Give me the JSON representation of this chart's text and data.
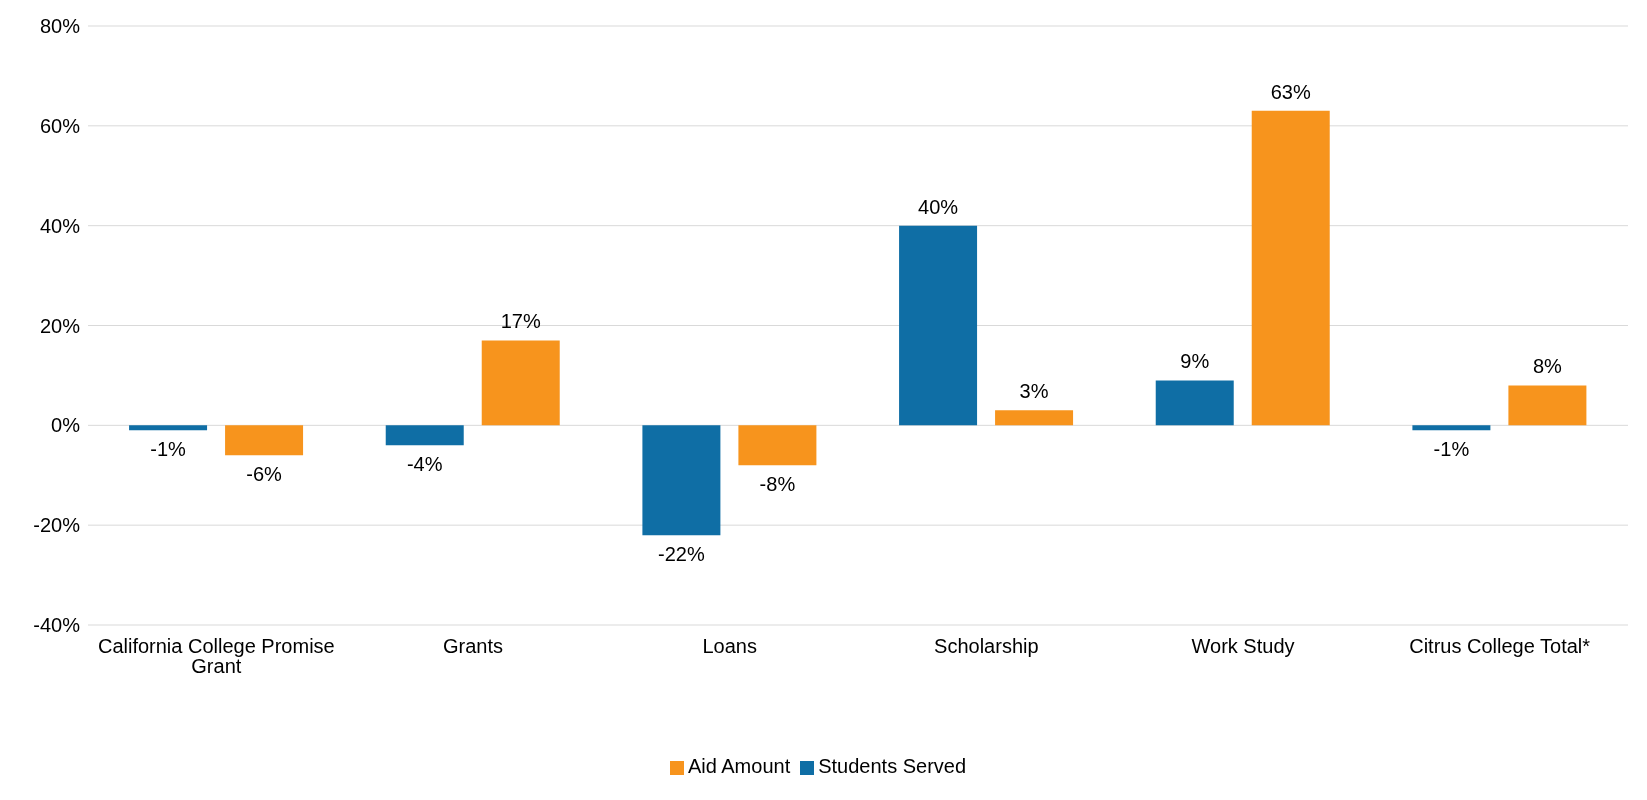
{
  "chart_data": {
    "type": "bar",
    "categories": [
      "California College Promise Grant",
      "Grants",
      "Loans",
      "Scholarship",
      "Work Study",
      "Citrus College Total*"
    ],
    "series": [
      {
        "name": "Students Served",
        "color": "#0f6ea5",
        "values": [
          -1,
          -4,
          -22,
          40,
          9,
          -1
        ],
        "value_labels": [
          "-1%",
          "-4%",
          "-22%",
          "40%",
          "9%",
          "-1%"
        ]
      },
      {
        "name": "Aid Amount",
        "color": "#f7941d",
        "values": [
          -6,
          17,
          -8,
          3,
          63,
          8
        ],
        "value_labels": [
          "-6%",
          "17%",
          "-8%",
          "3%",
          "63%",
          "8%"
        ]
      }
    ],
    "ylim": [
      -40,
      80
    ],
    "yticks": [
      {
        "value": -40,
        "label": "-40%"
      },
      {
        "value": -20,
        "label": "-20%"
      },
      {
        "value": 0,
        "label": "0%"
      },
      {
        "value": 20,
        "label": "20%"
      },
      {
        "value": 40,
        "label": "40%"
      },
      {
        "value": 60,
        "label": "60%"
      },
      {
        "value": 80,
        "label": "80%"
      }
    ],
    "grid": "y",
    "legend": "bottom"
  }
}
